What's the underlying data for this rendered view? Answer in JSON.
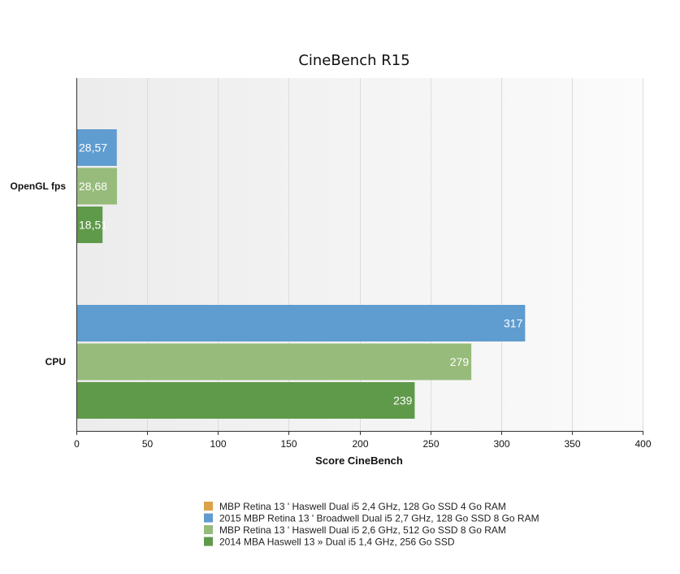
{
  "chart_data": {
    "type": "bar",
    "orientation": "horizontal",
    "title": "CineBench R15",
    "xlabel": "Score CineBench",
    "ylabel": "",
    "xlim": [
      0,
      400
    ],
    "ticks": [
      0,
      50,
      100,
      150,
      200,
      250,
      300,
      350,
      400
    ],
    "tick_labels": [
      "0",
      "50",
      "100",
      "150",
      "200",
      "250",
      "300",
      "350",
      "400"
    ],
    "categories": [
      "OpenGL fps",
      "CPU"
    ],
    "grid": true,
    "legend_position": "bottom",
    "series": [
      {
        "name": "MBP Retina 13 ' Haswell Dual i5 2,4 GHz, 128 Go SSD 4 Go RAM",
        "color": "#dba24b",
        "values": [
          null,
          null
        ],
        "labels": [
          "",
          ""
        ]
      },
      {
        "name": "2015 MBP Retina 13 ' Broadwell Dual i5 2,7 GHz, 128 Go SSD 8 Go RAM",
        "color": "#5f9ccf",
        "values": [
          28.57,
          317
        ],
        "labels": [
          "28,57",
          "317"
        ]
      },
      {
        "name": "MBP Retina 13 ' Haswell Dual i5 2,6 GHz, 512 Go SSD 8 Go RAM",
        "color": "#97bb7a",
        "values": [
          28.68,
          279
        ],
        "labels": [
          "28,68",
          "279"
        ]
      },
      {
        "name": "2014 MBA Haswell 13 » Dual i5 1,4 GHz, 256 Go SSD",
        "color": "#5f9a4b",
        "values": [
          18.51,
          239
        ],
        "labels": [
          "18,51",
          "239"
        ]
      }
    ]
  }
}
